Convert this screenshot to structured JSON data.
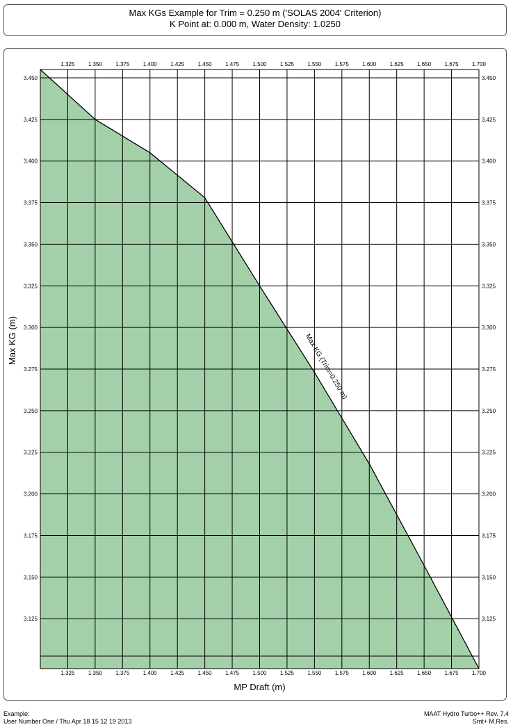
{
  "header": {
    "line1": "Max KGs Example for Trim = 0.250 m ('SOLAS 2004' Criterion)",
    "line2": "K Point at: 0.000 m, Water Density: 1.0250"
  },
  "chart_data": {
    "type": "area",
    "xlabel": "MP Draft (m)",
    "ylabel": "Max KG (m)",
    "xlim": [
      1.3,
      1.7
    ],
    "ylim": [
      3.095,
      3.455
    ],
    "xticks": [
      "1.325",
      "1.350",
      "1.375",
      "1.400",
      "1.425",
      "1.450",
      "1.475",
      "1.500",
      "1.525",
      "1.550",
      "1.575",
      "1.600",
      "1.625",
      "1.650",
      "1.675",
      "1.700"
    ],
    "yticks": [
      "3.450",
      "3.425",
      "3.400",
      "3.375",
      "3.350",
      "3.325",
      "3.300",
      "3.275",
      "3.250",
      "3.225",
      "3.200",
      "3.175",
      "3.150",
      "3.125"
    ],
    "grid": true,
    "series": [
      {
        "name": "Max KG (Trim=0.250 m)",
        "x": [
          1.3,
          1.35,
          1.4,
          1.45,
          1.5,
          1.55,
          1.6,
          1.65,
          1.7
        ],
        "y": [
          3.455,
          3.425,
          3.405,
          3.378,
          3.325,
          3.273,
          3.218,
          3.157,
          3.095
        ]
      }
    ],
    "colors": {
      "safe": "#a3d0a8",
      "unsafe": "#e59ea0",
      "line": "#000000",
      "grid": "#000000"
    }
  },
  "footer": {
    "left_line1": "Example:",
    "left_line2": "User Number One / Thu Apr 18 15 12 19 2013",
    "right_line1": "MAAT Hydro Turbo++ Rev. 7.4",
    "right_line2": "Smt+ M.Res."
  }
}
